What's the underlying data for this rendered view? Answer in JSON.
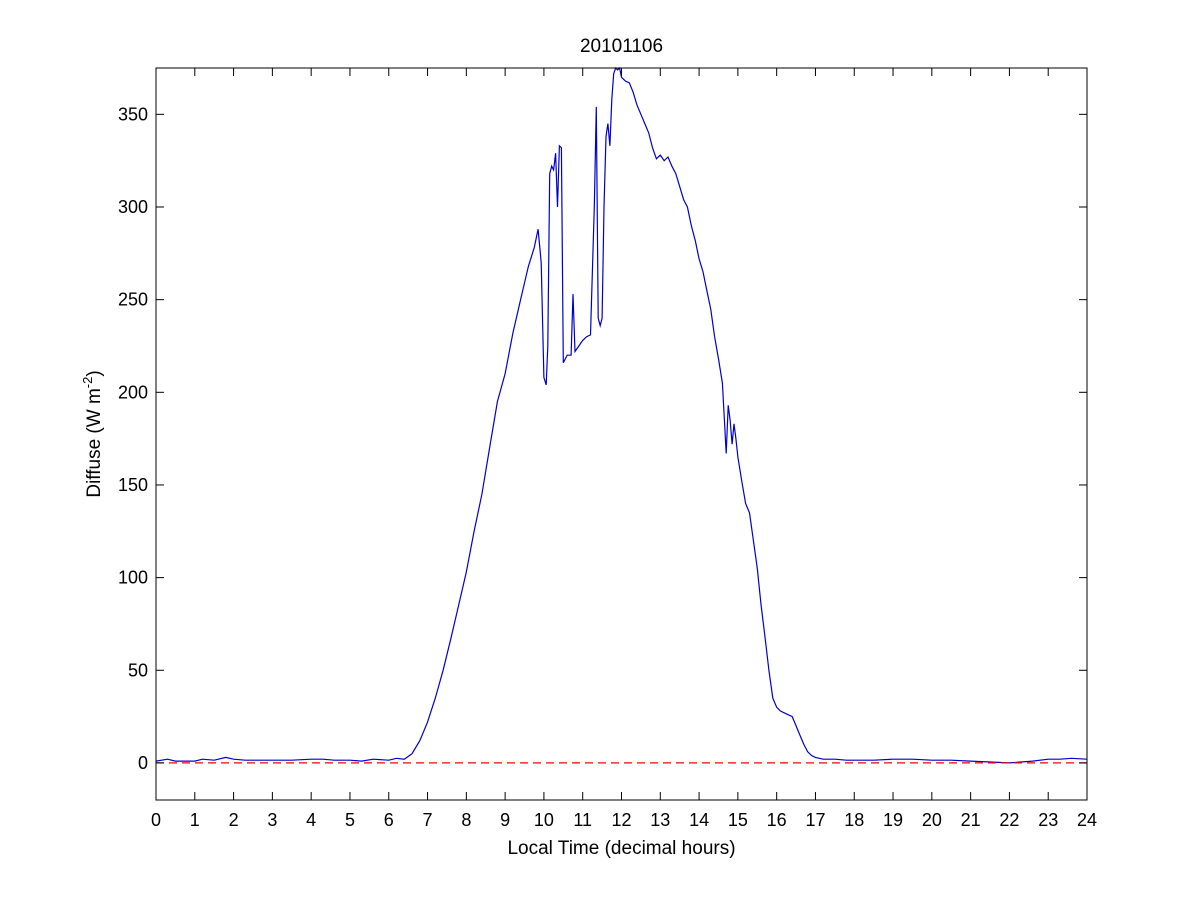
{
  "chart_data": {
    "type": "line",
    "title": "20101106",
    "xlabel": "Local Time (decimal hours)",
    "ylabel_main": "Diffuse (W m",
    "ylabel_sup": "-2",
    "ylabel_close": ")",
    "xlim": [
      0,
      24
    ],
    "ylim": [
      -20,
      375
    ],
    "xticks": [
      0,
      1,
      2,
      3,
      4,
      5,
      6,
      7,
      8,
      9,
      10,
      11,
      12,
      13,
      14,
      15,
      16,
      17,
      18,
      19,
      20,
      21,
      22,
      23,
      24
    ],
    "yticks": [
      0,
      50,
      100,
      150,
      200,
      250,
      300,
      350
    ],
    "grid": false,
    "series": [
      {
        "color": "#0000cc",
        "style": "solid",
        "points": [
          [
            0,
            1
          ],
          [
            0.3,
            2
          ],
          [
            0.5,
            1
          ],
          [
            0.8,
            1
          ],
          [
            1,
            1
          ],
          [
            1.2,
            2
          ],
          [
            1.5,
            1.5
          ],
          [
            1.8,
            3
          ],
          [
            2,
            2
          ],
          [
            2.3,
            1.5
          ],
          [
            2.6,
            1.5
          ],
          [
            3,
            1.5
          ],
          [
            3.5,
            1.5
          ],
          [
            4,
            2
          ],
          [
            4.3,
            2
          ],
          [
            4.6,
            1.5
          ],
          [
            5,
            1.5
          ],
          [
            5.3,
            1
          ],
          [
            5.6,
            2
          ],
          [
            6,
            1.5
          ],
          [
            6.2,
            2.5
          ],
          [
            6.4,
            2
          ],
          [
            6.6,
            5
          ],
          [
            6.8,
            12
          ],
          [
            7,
            22
          ],
          [
            7.2,
            35
          ],
          [
            7.4,
            50
          ],
          [
            7.6,
            67
          ],
          [
            7.8,
            85
          ],
          [
            8,
            103
          ],
          [
            8.2,
            125
          ],
          [
            8.4,
            145
          ],
          [
            8.6,
            170
          ],
          [
            8.8,
            195
          ],
          [
            9,
            210
          ],
          [
            9.2,
            232
          ],
          [
            9.4,
            250
          ],
          [
            9.6,
            268
          ],
          [
            9.75,
            278
          ],
          [
            9.85,
            288
          ],
          [
            9.93,
            270
          ],
          [
            10,
            208
          ],
          [
            10.06,
            204
          ],
          [
            10.1,
            225
          ],
          [
            10.15,
            318
          ],
          [
            10.2,
            322
          ],
          [
            10.25,
            320
          ],
          [
            10.3,
            329
          ],
          [
            10.35,
            300
          ],
          [
            10.4,
            333
          ],
          [
            10.45,
            332
          ],
          [
            10.5,
            216
          ],
          [
            10.55,
            218
          ],
          [
            10.6,
            220
          ],
          [
            10.7,
            220
          ],
          [
            10.75,
            253
          ],
          [
            10.8,
            222
          ],
          [
            10.9,
            225
          ],
          [
            11,
            228
          ],
          [
            11.1,
            230
          ],
          [
            11.2,
            231
          ],
          [
            11.3,
            300
          ],
          [
            11.35,
            354
          ],
          [
            11.4,
            240
          ],
          [
            11.45,
            236
          ],
          [
            11.5,
            240
          ],
          [
            11.55,
            300
          ],
          [
            11.6,
            338
          ],
          [
            11.65,
            345
          ],
          [
            11.7,
            333
          ],
          [
            11.75,
            358
          ],
          [
            11.8,
            372
          ],
          [
            11.85,
            375
          ],
          [
            11.9,
            374
          ],
          [
            11.95,
            375
          ],
          [
            12,
            370
          ],
          [
            12.1,
            368
          ],
          [
            12.2,
            367
          ],
          [
            12.3,
            362
          ],
          [
            12.4,
            355
          ],
          [
            12.5,
            350
          ],
          [
            12.6,
            345
          ],
          [
            12.7,
            340
          ],
          [
            12.8,
            332
          ],
          [
            12.9,
            326
          ],
          [
            13,
            328
          ],
          [
            13.1,
            325
          ],
          [
            13.2,
            327
          ],
          [
            13.3,
            322
          ],
          [
            13.4,
            318
          ],
          [
            13.5,
            311
          ],
          [
            13.6,
            304
          ],
          [
            13.7,
            300
          ],
          [
            13.8,
            290
          ],
          [
            13.9,
            282
          ],
          [
            14,
            272
          ],
          [
            14.1,
            265
          ],
          [
            14.2,
            255
          ],
          [
            14.3,
            245
          ],
          [
            14.4,
            230
          ],
          [
            14.5,
            218
          ],
          [
            14.6,
            205
          ],
          [
            14.7,
            167
          ],
          [
            14.75,
            193
          ],
          [
            14.8,
            185
          ],
          [
            14.85,
            172
          ],
          [
            14.9,
            183
          ],
          [
            14.95,
            175
          ],
          [
            15,
            165
          ],
          [
            15.1,
            152
          ],
          [
            15.2,
            140
          ],
          [
            15.3,
            135
          ],
          [
            15.4,
            120
          ],
          [
            15.5,
            105
          ],
          [
            15.6,
            85
          ],
          [
            15.7,
            68
          ],
          [
            15.8,
            50
          ],
          [
            15.9,
            35
          ],
          [
            16,
            30
          ],
          [
            16.1,
            28
          ],
          [
            16.2,
            27
          ],
          [
            16.3,
            26
          ],
          [
            16.4,
            25
          ],
          [
            16.5,
            20
          ],
          [
            16.6,
            15
          ],
          [
            16.7,
            10
          ],
          [
            16.8,
            6
          ],
          [
            16.9,
            4
          ],
          [
            17,
            3
          ],
          [
            17.2,
            2
          ],
          [
            17.5,
            2
          ],
          [
            17.8,
            1.5
          ],
          [
            18,
            1.5
          ],
          [
            18.5,
            1.5
          ],
          [
            19,
            2
          ],
          [
            19.5,
            2
          ],
          [
            20,
            1.5
          ],
          [
            20.5,
            1.5
          ],
          [
            21,
            1
          ],
          [
            21.5,
            0.5
          ],
          [
            22,
            0
          ],
          [
            22.3,
            0.5
          ],
          [
            22.6,
            1
          ],
          [
            23,
            2
          ],
          [
            23.3,
            2
          ],
          [
            23.6,
            2.5
          ],
          [
            24,
            2
          ]
        ]
      },
      {
        "color": "#ff0000",
        "style": "dashed",
        "points": [
          [
            0,
            0
          ],
          [
            24,
            0
          ]
        ]
      }
    ]
  }
}
